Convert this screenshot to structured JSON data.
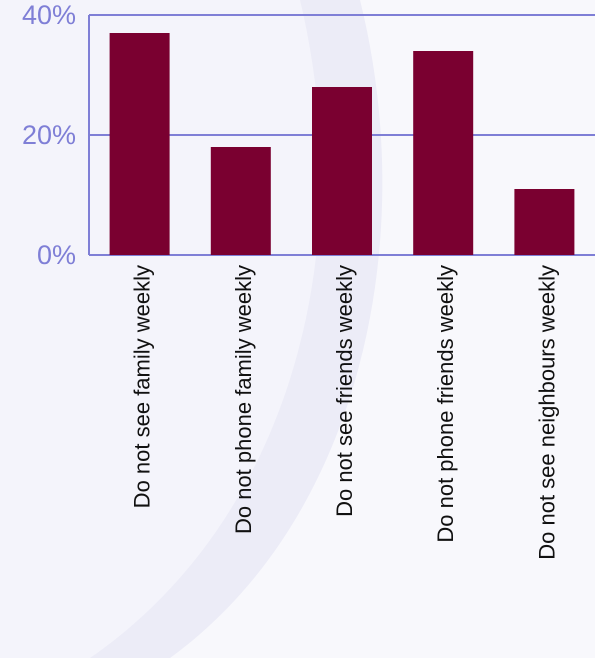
{
  "chart_data": {
    "type": "bar",
    "categories": [
      "Do not see family weekly",
      "Do not phone family weekly",
      "Do not see friends weekly",
      "Do not phone friends weekly",
      "Do not see neighbours weekly"
    ],
    "values": [
      37,
      18,
      28,
      34,
      11
    ],
    "y_unit": "%",
    "ylim": [
      0,
      40
    ],
    "yticks": [
      0,
      20,
      40
    ],
    "ytick_labels": [
      "0%",
      "20%",
      "40%"
    ],
    "grid": true,
    "colors": {
      "bar": "#7a0030",
      "axis": "#7f7fd6",
      "tick_text": "#7f7fd6",
      "category_text": "#111111",
      "background": "#f4f4fb"
    }
  }
}
